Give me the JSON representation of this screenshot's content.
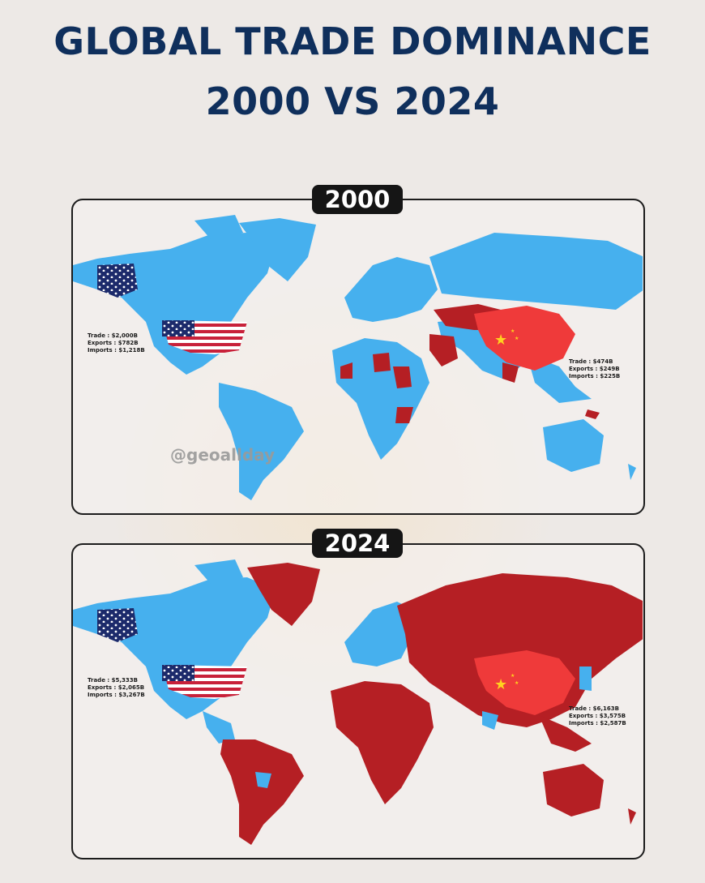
{
  "title": {
    "line1": "GLOBAL TRADE DOMINANCE",
    "line2": "2000 VS 2024"
  },
  "colors": {
    "usa_aligned": "#46b0ee",
    "china_aligned": "#b51f24",
    "china": "#ef3a3a",
    "title": "#0f2f5c",
    "background": "#ede9e6"
  },
  "watermark": "@geoallday",
  "panels": [
    {
      "year": "2000",
      "usa": {
        "trade": "Trade : $2,000B",
        "exports": "Exports : $782B",
        "imports": "Imports : $1,218B"
      },
      "china": {
        "trade": "Trade : $474B",
        "exports": "Exports : $249B",
        "imports": "Imports : $225B"
      }
    },
    {
      "year": "2024",
      "usa": {
        "trade": "Trade : $5,333B",
        "exports": "Exports : $2,065B",
        "imports": "Imports : $3,267B"
      },
      "china": {
        "trade": "Trade : $6,163B",
        "exports": "Exports : $3,575B",
        "imports": "Imports : $2,587B"
      }
    }
  ]
}
